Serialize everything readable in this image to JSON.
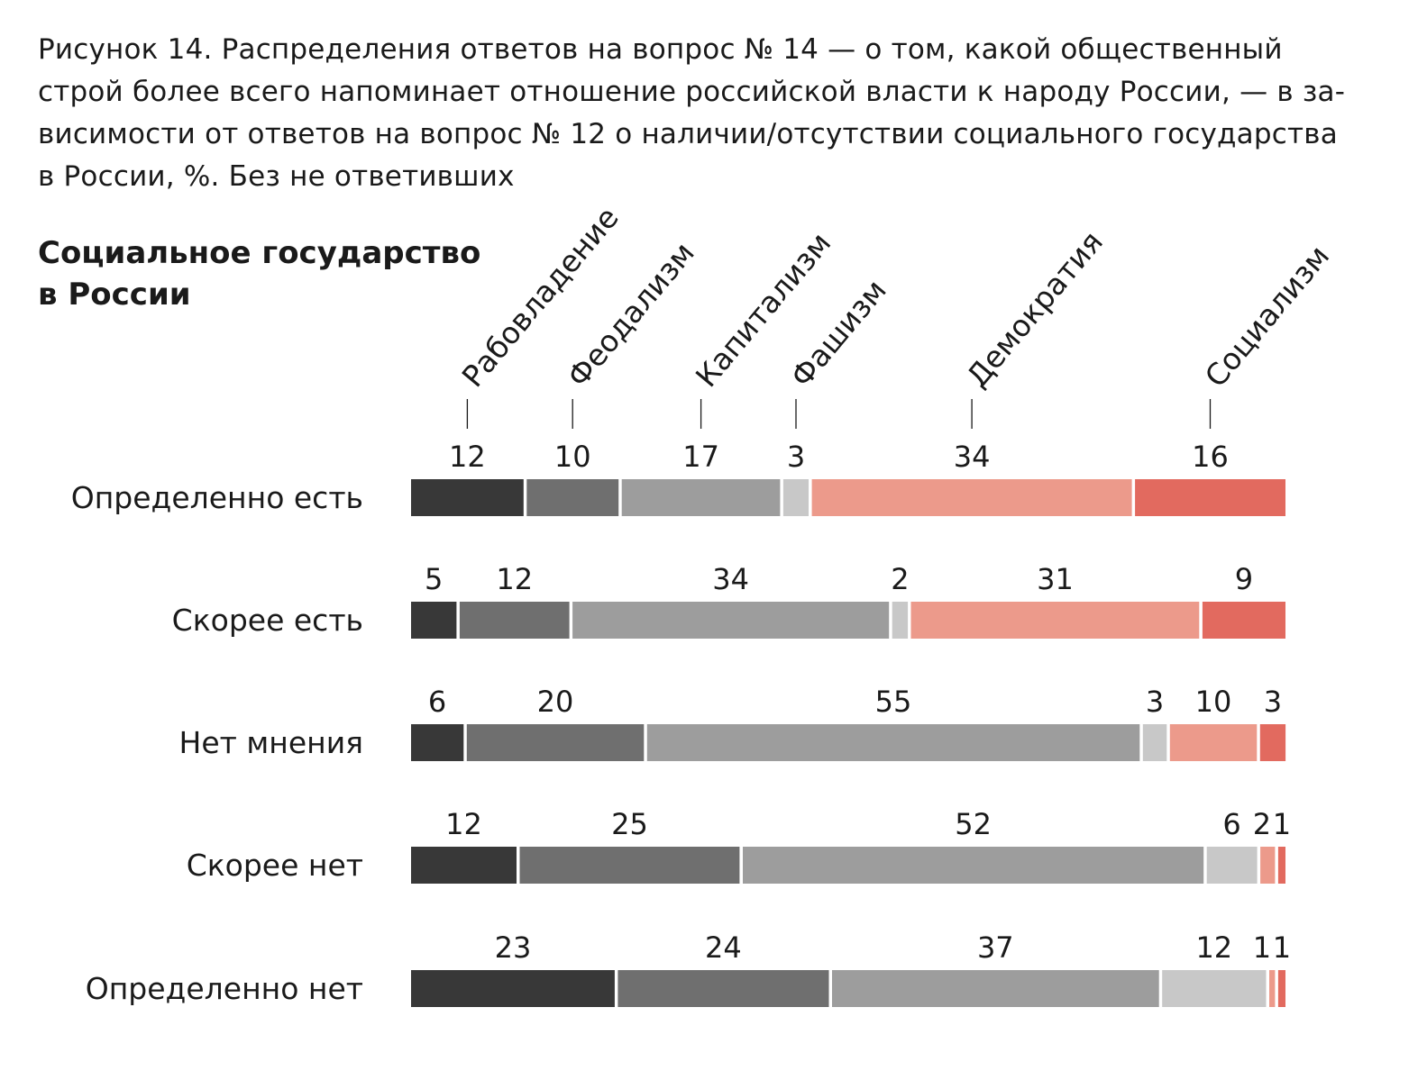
{
  "caption": {
    "line1": "Рисунок 14. Распределения ответов на вопрос № 14 — о том, какой общественный",
    "line2": "строй более всего напоминает отношение российской власти к народу России, — в за-",
    "line3": "висимости от ответов на вопрос № 12 о наличии/отсутствии социального государства",
    "line4": "в России, %. Без не ответивших"
  },
  "subtitle": {
    "line1": "Социальное государство",
    "line2": "в России"
  },
  "chart_data": {
    "type": "bar",
    "orientation": "horizontal",
    "stacked": true,
    "percent": true,
    "categories": [
      "Определенно есть",
      "Скорее есть",
      "Нет мнения",
      "Скорее нет",
      "Определенно нет"
    ],
    "series": [
      {
        "name": "Рабовладение",
        "color": "#383838",
        "values": [
          12,
          5,
          6,
          12,
          23
        ]
      },
      {
        "name": "Феодализм",
        "color": "#6f6f6f",
        "values": [
          10,
          12,
          20,
          25,
          24
        ]
      },
      {
        "name": "Капитализм",
        "color": "#9d9d9d",
        "values": [
          17,
          34,
          55,
          52,
          37
        ]
      },
      {
        "name": "Фашизм",
        "color": "#c8c8c8",
        "values": [
          3,
          2,
          3,
          6,
          12
        ]
      },
      {
        "name": "Демократия",
        "color": "#ec9a8b",
        "values": [
          34,
          31,
          10,
          2,
          1
        ]
      },
      {
        "name": "Социализм",
        "color": "#e26a5f",
        "values": [
          16,
          9,
          3,
          1,
          1
        ]
      }
    ],
    "xlim": [
      0,
      100
    ],
    "legend_placement": "top, rotated labels above first bar",
    "grid": false
  }
}
